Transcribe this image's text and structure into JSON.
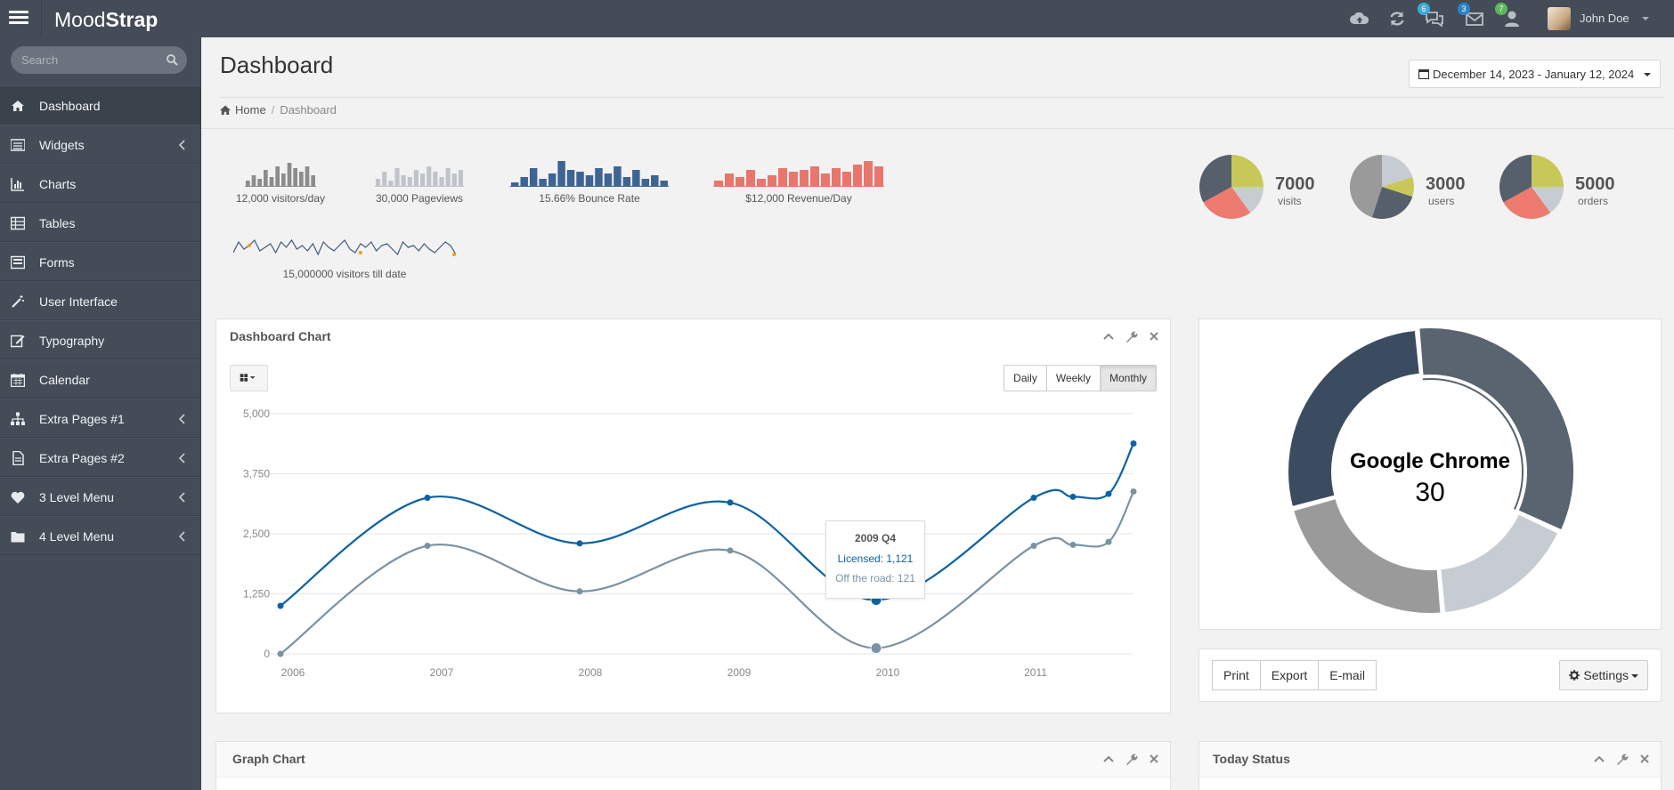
{
  "app": {
    "brand_light": "Mood",
    "brand_bold": "Strap"
  },
  "topbar": {
    "badges": {
      "comments": "6",
      "mail": "3",
      "users": "7"
    },
    "user_name": "John Doe"
  },
  "search": {
    "placeholder": "Search"
  },
  "sidebar": {
    "items": [
      {
        "label": "Dashboard",
        "icon": "home-icon",
        "active": true
      },
      {
        "label": "Widgets",
        "icon": "list-icon",
        "submenu": true
      },
      {
        "label": "Charts",
        "icon": "bar-chart-icon"
      },
      {
        "label": "Tables",
        "icon": "table-icon"
      },
      {
        "label": "Forms",
        "icon": "forms-icon"
      },
      {
        "label": "User Interface",
        "icon": "magic-wand-icon"
      },
      {
        "label": "Typography",
        "icon": "edit-icon"
      },
      {
        "label": "Calendar",
        "icon": "calendar-icon"
      },
      {
        "label": "Extra Pages #1",
        "icon": "sitemap-icon",
        "submenu": true
      },
      {
        "label": "Extra Pages #2",
        "icon": "file-icon",
        "submenu": true
      },
      {
        "label": "3 Level Menu",
        "icon": "heart-icon",
        "submenu": true
      },
      {
        "label": "4 Level Menu",
        "icon": "folder-icon",
        "submenu": true
      }
    ]
  },
  "header": {
    "title": "Dashboard",
    "date_range": "December 14, 2023 - January 12, 2024",
    "breadcrumb": {
      "home": "Home",
      "current": "Dashboard"
    }
  },
  "stats": {
    "sparks": [
      {
        "label": "12,000 visitors/day",
        "color": "#8c8c8c"
      },
      {
        "label": "30,000 Pageviews",
        "color": "#c0c4ca"
      },
      {
        "label": "15.66% Bounce Rate",
        "color": "#3e6494"
      },
      {
        "label": "$12,000 Revenue/Day",
        "color": "#e8766c"
      },
      {
        "label": "15,000000 visitors till date",
        "color": "#3e5a80"
      }
    ],
    "pies": [
      {
        "value": "7000",
        "label": "visits"
      },
      {
        "value": "3000",
        "label": "users"
      },
      {
        "value": "5000",
        "label": "orders"
      }
    ]
  },
  "dashboard_chart": {
    "title": "Dashboard Chart",
    "periods": [
      "Daily",
      "Weekly",
      "Monthly"
    ],
    "active_period": "Monthly",
    "tooltip": {
      "title": "2009 Q4",
      "line1": "Licensed: 1,121",
      "line2": "Off the road: 121"
    }
  },
  "chart_data": {
    "type": "line",
    "title": "Dashboard Chart",
    "x": [
      "2006 Q1",
      "2007 Q1",
      "2008 Q1",
      "2009 Q1",
      "2009 Q4",
      "2010 Q4",
      "2011 Q1",
      "2011 Q2",
      "2011 Q3"
    ],
    "x_ticks": [
      "2006",
      "2007",
      "2008",
      "2009",
      "2010",
      "2011"
    ],
    "y_ticks": [
      "0",
      "1,250",
      "2,500",
      "3,750",
      "5,000"
    ],
    "ylim": [
      0,
      5000
    ],
    "series": [
      {
        "name": "Licensed",
        "color": "#0b62a4",
        "values": [
          1000,
          3250,
          2300,
          3150,
          1121,
          3250,
          3270,
          3330,
          4380
        ]
      },
      {
        "name": "Off the road",
        "color": "#7a92a3",
        "values": [
          0,
          2250,
          1300,
          2150,
          121,
          2250,
          2270,
          2330,
          3380
        ]
      }
    ],
    "grid": true
  },
  "donut": {
    "center_label": "Google Chrome",
    "center_value": "30",
    "segments": [
      {
        "value": 30,
        "color": "#5a6470"
      },
      {
        "value": 15,
        "color": "#c7ccd3"
      },
      {
        "value": 20,
        "color": "#9a9a9a"
      },
      {
        "value": 25,
        "color": "#3b4b60"
      }
    ]
  },
  "actions": {
    "buttons": [
      "Print",
      "Export",
      "E-mail"
    ],
    "settings": "Settings"
  },
  "bottom_panels": {
    "graph": "Graph Chart",
    "today": "Today Status"
  }
}
